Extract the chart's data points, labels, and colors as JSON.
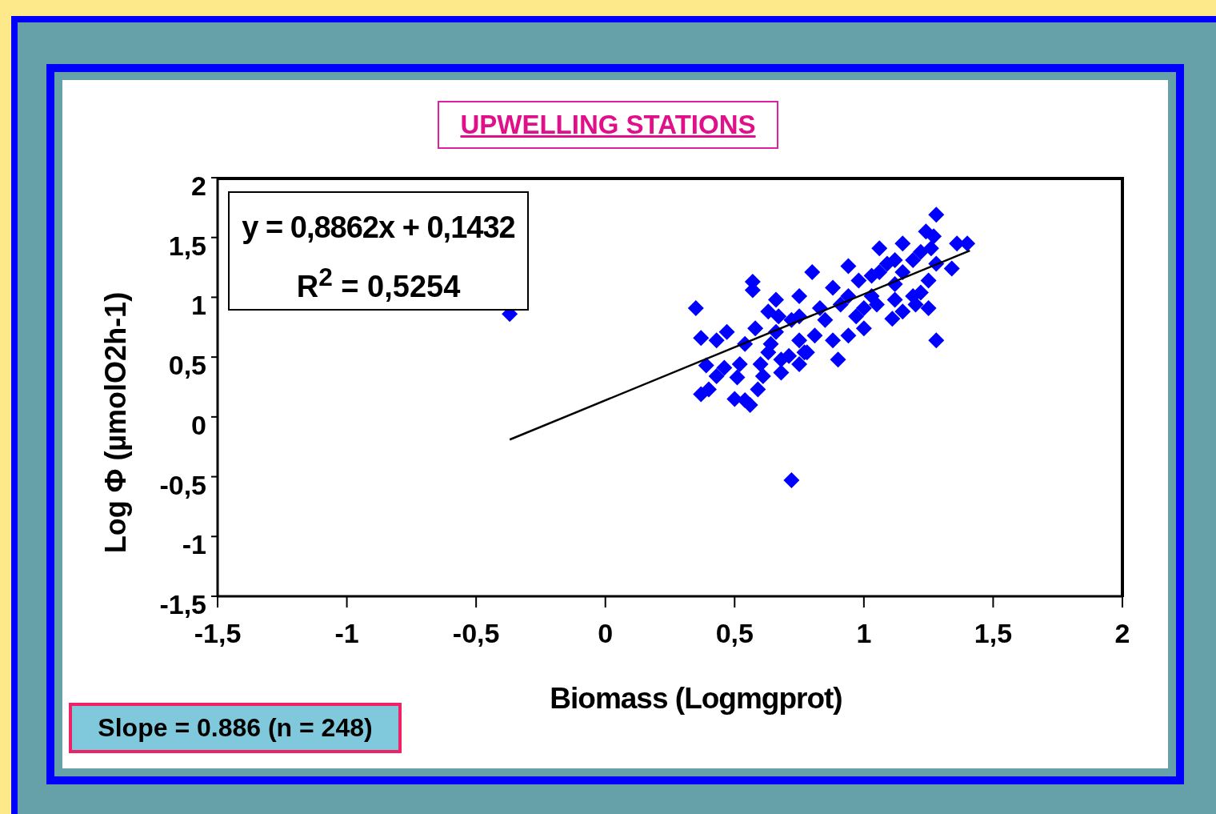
{
  "chart_data": {
    "type": "scatter",
    "title": "UPWELLING STATIONS",
    "xlabel": "Biomass (Logmgprot)",
    "ylabel": "Log Φ (µmolO2h-1)",
    "annotations": [
      "y = 0,8862x + 0,1432",
      "R$^{2}$ = 0,5254",
      "Slope = 0.886 (n = 248)"
    ],
    "xlim": [
      -1.5,
      2
    ],
    "ylim": [
      -1.5,
      2
    ],
    "xticks": [
      {
        "value": -1.5,
        "label": "-1,5"
      },
      {
        "value": -1,
        "label": "-1"
      },
      {
        "value": -0.5,
        "label": "-0,5"
      },
      {
        "value": 0,
        "label": "0"
      },
      {
        "value": 0.5,
        "label": "0,5"
      },
      {
        "value": 1,
        "label": "1"
      },
      {
        "value": 1.5,
        "label": "1,5"
      },
      {
        "value": 2,
        "label": "2"
      }
    ],
    "yticks": [
      {
        "value": -1.5,
        "label": "-1,5"
      },
      {
        "value": -1,
        "label": "-1"
      },
      {
        "value": -0.5,
        "label": "-0,5"
      },
      {
        "value": 0,
        "label": "0"
      },
      {
        "value": 0.5,
        "label": "0,5"
      },
      {
        "value": 1,
        "label": "1"
      },
      {
        "value": 1.5,
        "label": "1,5"
      },
      {
        "value": 2,
        "label": "2"
      }
    ],
    "marker": "diamond",
    "series": [
      {
        "color": "#0000ff",
        "x": [
          -0.37,
          0.72,
          1.28,
          1.28,
          1.4,
          1.36,
          1.34,
          0.35,
          0.57,
          0.57,
          0.37,
          0.37,
          0.4,
          0.5,
          0.56,
          0.54,
          0.51,
          0.59,
          0.39,
          0.43,
          0.47,
          0.9,
          0.68,
          1.0,
          1.11,
          1.25,
          0.8,
          0.94,
          1.06,
          1.15,
          1.24,
          1.27,
          1.22,
          1.06,
          1.12,
          1.19,
          0.91,
          0.75,
          0.66,
          0.63,
          0.72,
          0.85,
          0.81,
          0.88,
          0.78,
          0.71,
          0.63,
          0.54,
          0.58,
          0.66,
          0.6,
          0.52,
          0.46,
          0.43,
          0.75,
          0.97,
          1.03,
          1.09,
          1.15,
          1.28,
          1.25,
          1.22,
          0.98,
          0.88,
          0.94,
          1.0,
          1.12,
          1.2,
          0.83,
          0.75,
          0.67,
          0.94,
          0.64,
          0.75,
          0.61,
          0.68,
          0.77,
          1.03,
          1.12,
          1.19,
          1.26,
          1.05,
          1.15
        ],
        "values": [
          0.86,
          -0.53,
          0.64,
          1.69,
          1.45,
          1.45,
          1.24,
          0.91,
          1.13,
          1.06,
          0.66,
          0.19,
          0.23,
          0.15,
          0.1,
          0.14,
          0.33,
          0.23,
          0.43,
          0.64,
          0.71,
          0.48,
          0.37,
          0.74,
          0.82,
          0.91,
          1.21,
          1.26,
          1.41,
          1.45,
          1.55,
          1.51,
          1.38,
          1.21,
          1.11,
          1.01,
          0.94,
          1.01,
          0.98,
          0.88,
          0.81,
          0.81,
          0.68,
          0.64,
          0.54,
          0.51,
          0.54,
          0.61,
          0.74,
          0.71,
          0.44,
          0.44,
          0.41,
          0.34,
          0.44,
          0.84,
          1.01,
          1.28,
          1.21,
          1.28,
          1.14,
          1.04,
          1.14,
          1.08,
          1.01,
          0.91,
          0.98,
          0.94,
          0.91,
          0.84,
          0.84,
          0.68,
          0.61,
          0.64,
          0.34,
          0.48,
          0.54,
          1.18,
          1.31,
          1.31,
          1.41,
          0.94,
          0.88
        ]
      },
      {
        "type": "line",
        "marker": "none",
        "color": "#000000",
        "x": [
          -0.37,
          1.41
        ],
        "values": [
          -0.19,
          1.39
        ]
      }
    ]
  }
}
